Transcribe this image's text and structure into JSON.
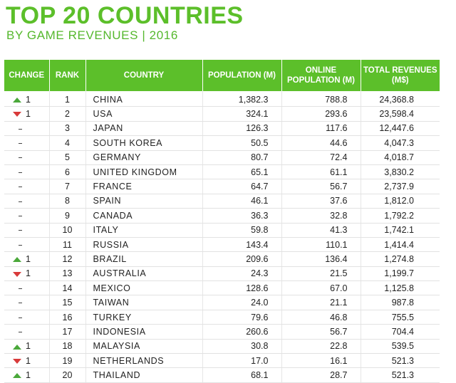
{
  "header": {
    "title": "TOP 20 COUNTRIES",
    "subtitle": "BY GAME REVENUES | 2016"
  },
  "colors": {
    "accent": "#5cbf2a",
    "up": "#4aa83a",
    "down": "#d83a3a"
  },
  "chart_data": {
    "type": "table",
    "title": "TOP 20 COUNTRIES",
    "subtitle": "BY GAME REVENUES | 2016",
    "columns": [
      "CHANGE",
      "RANK",
      "COUNTRY",
      "POPULATION (M)",
      "ONLINE POPULATION (M)",
      "TOTAL REVENUES (M$)"
    ],
    "rows": [
      {
        "change": "up",
        "change_value": "1",
        "rank": "1",
        "country": "CHINA",
        "population": "1,382.3",
        "online": "788.8",
        "revenue": "24,368.8"
      },
      {
        "change": "down",
        "change_value": "1",
        "rank": "2",
        "country": "USA",
        "population": "324.1",
        "online": "293.6",
        "revenue": "23,598.4"
      },
      {
        "change": "none",
        "change_value": "",
        "rank": "3",
        "country": "JAPAN",
        "population": "126.3",
        "online": "117.6",
        "revenue": "12,447.6"
      },
      {
        "change": "none",
        "change_value": "",
        "rank": "4",
        "country": "SOUTH KOREA",
        "population": "50.5",
        "online": "44.6",
        "revenue": "4,047.3"
      },
      {
        "change": "none",
        "change_value": "",
        "rank": "5",
        "country": "GERMANY",
        "population": "80.7",
        "online": "72.4",
        "revenue": "4,018.7"
      },
      {
        "change": "none",
        "change_value": "",
        "rank": "6",
        "country": "UNITED KINGDOM",
        "population": "65.1",
        "online": "61.1",
        "revenue": "3,830.2"
      },
      {
        "change": "none",
        "change_value": "",
        "rank": "7",
        "country": "FRANCE",
        "population": "64.7",
        "online": "56.7",
        "revenue": "2,737.9"
      },
      {
        "change": "none",
        "change_value": "",
        "rank": "8",
        "country": "SPAIN",
        "population": "46.1",
        "online": "37.6",
        "revenue": "1,812.0"
      },
      {
        "change": "none",
        "change_value": "",
        "rank": "9",
        "country": "CANADA",
        "population": "36.3",
        "online": "32.8",
        "revenue": "1,792.2"
      },
      {
        "change": "none",
        "change_value": "",
        "rank": "10",
        "country": "ITALY",
        "population": "59.8",
        "online": "41.3",
        "revenue": "1,742.1"
      },
      {
        "change": "none",
        "change_value": "",
        "rank": "11",
        "country": "RUSSIA",
        "population": "143.4",
        "online": "110.1",
        "revenue": "1,414.4"
      },
      {
        "change": "up",
        "change_value": "1",
        "rank": "12",
        "country": "BRAZIL",
        "population": "209.6",
        "online": "136.4",
        "revenue": "1,274.8"
      },
      {
        "change": "down",
        "change_value": "1",
        "rank": "13",
        "country": "AUSTRALIA",
        "population": "24.3",
        "online": "21.5",
        "revenue": "1,199.7"
      },
      {
        "change": "none",
        "change_value": "",
        "rank": "14",
        "country": "MEXICO",
        "population": "128.6",
        "online": "67.0",
        "revenue": "1,125.8"
      },
      {
        "change": "none",
        "change_value": "",
        "rank": "15",
        "country": "TAIWAN",
        "population": "24.0",
        "online": "21.1",
        "revenue": "987.8"
      },
      {
        "change": "none",
        "change_value": "",
        "rank": "16",
        "country": "TURKEY",
        "population": "79.6",
        "online": "46.8",
        "revenue": "755.5"
      },
      {
        "change": "none",
        "change_value": "",
        "rank": "17",
        "country": "INDONESIA",
        "population": "260.6",
        "online": "56.7",
        "revenue": "704.4"
      },
      {
        "change": "up",
        "change_value": "1",
        "rank": "18",
        "country": "MALAYSIA",
        "population": "30.8",
        "online": "22.8",
        "revenue": "539.5"
      },
      {
        "change": "down",
        "change_value": "1",
        "rank": "19",
        "country": "NETHERLANDS",
        "population": "17.0",
        "online": "16.1",
        "revenue": "521.3"
      },
      {
        "change": "up",
        "change_value": "1",
        "rank": "20",
        "country": "THAILAND",
        "population": "68.1",
        "online": "28.7",
        "revenue": "521.3"
      }
    ]
  }
}
